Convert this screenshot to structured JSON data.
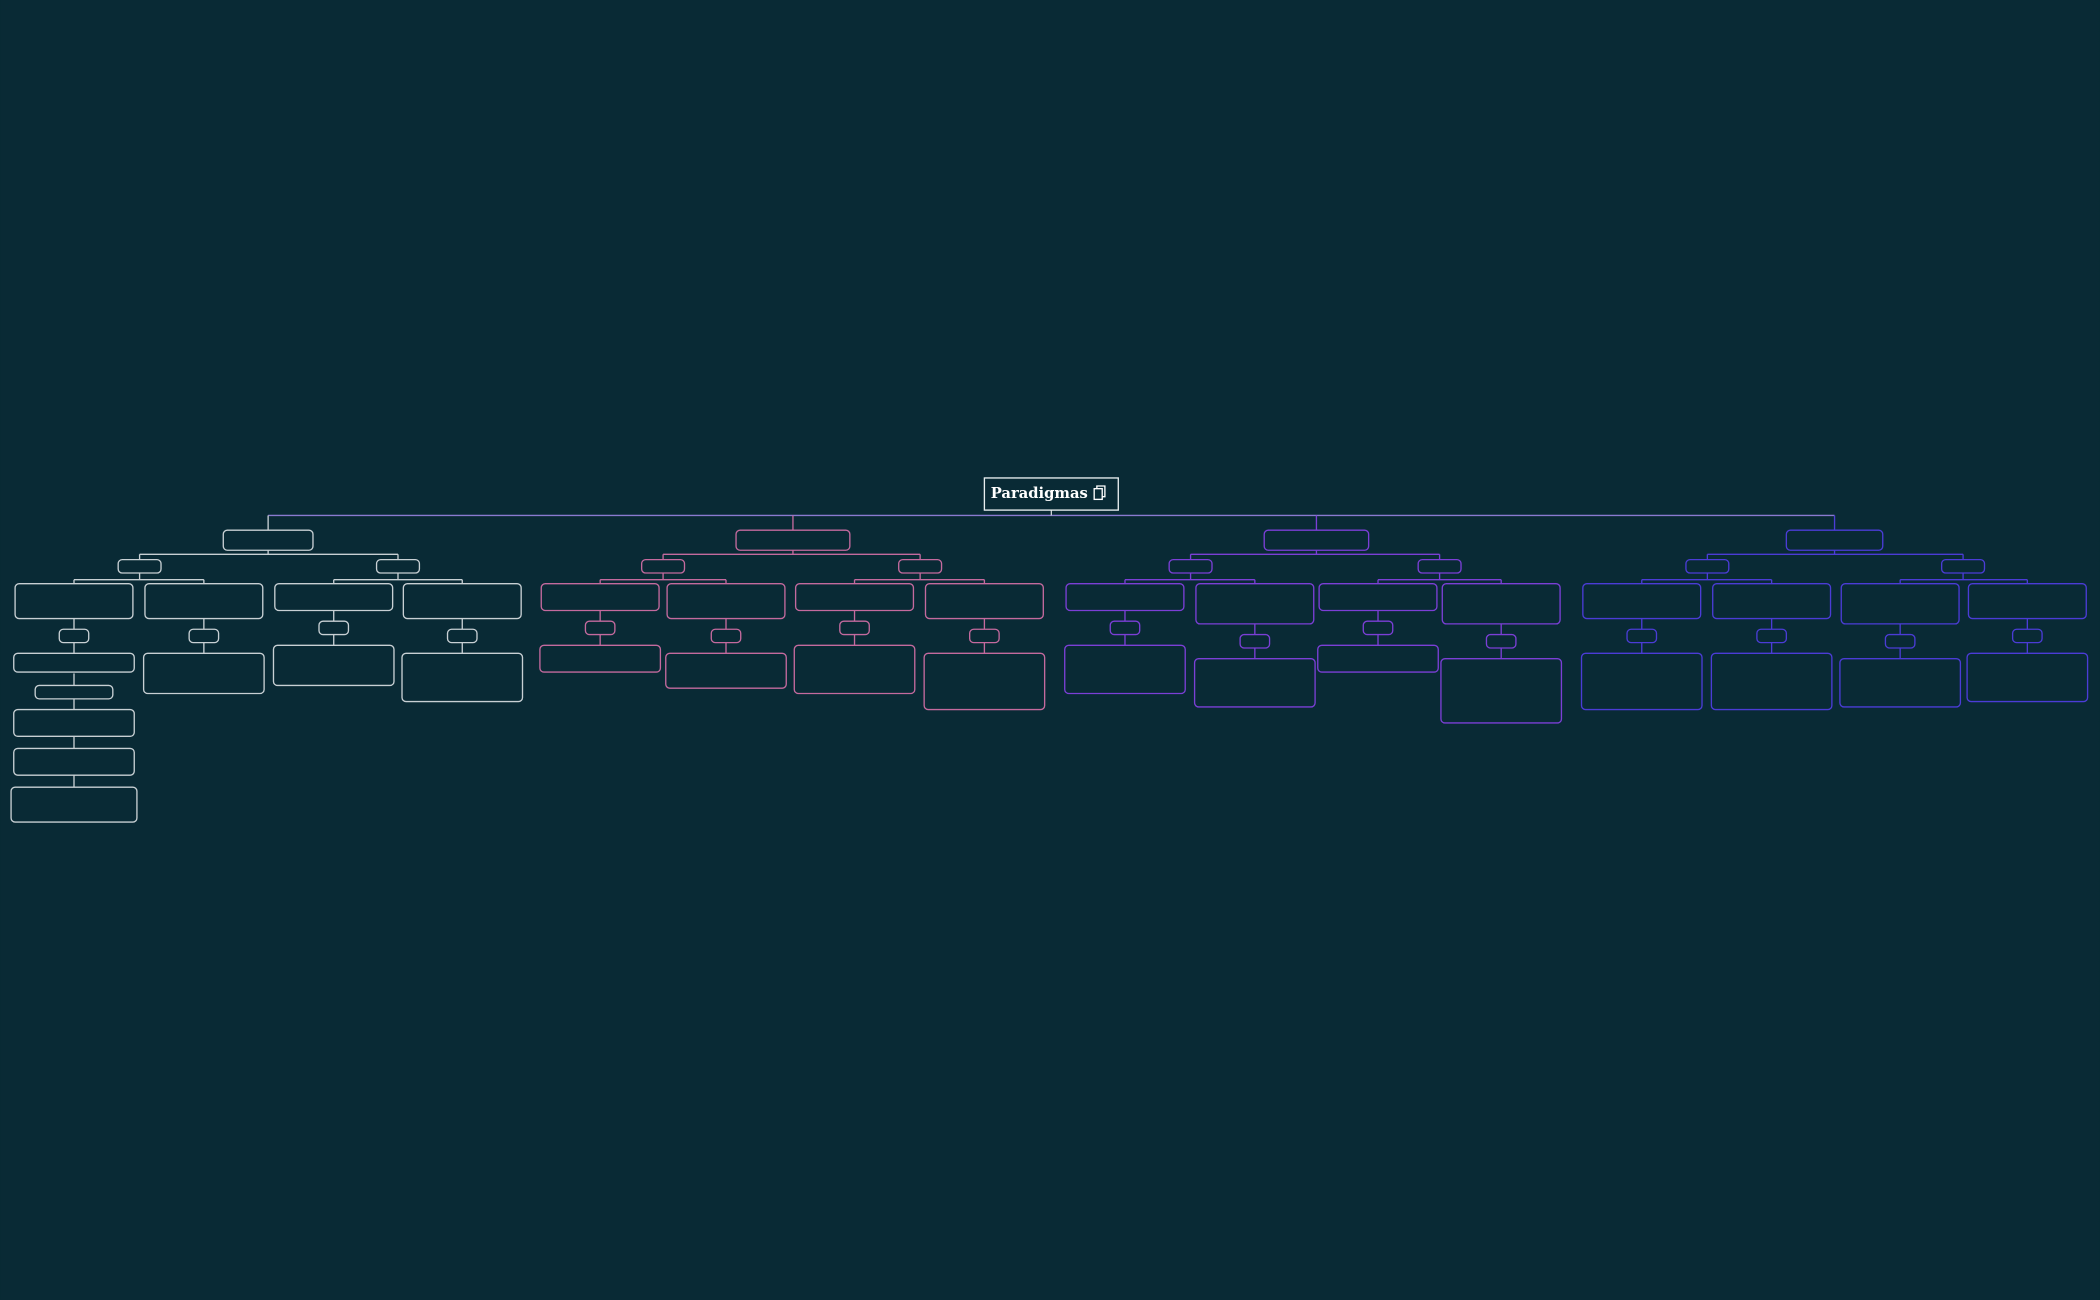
{
  "root": {
    "label": "Paradigmas"
  }
}
